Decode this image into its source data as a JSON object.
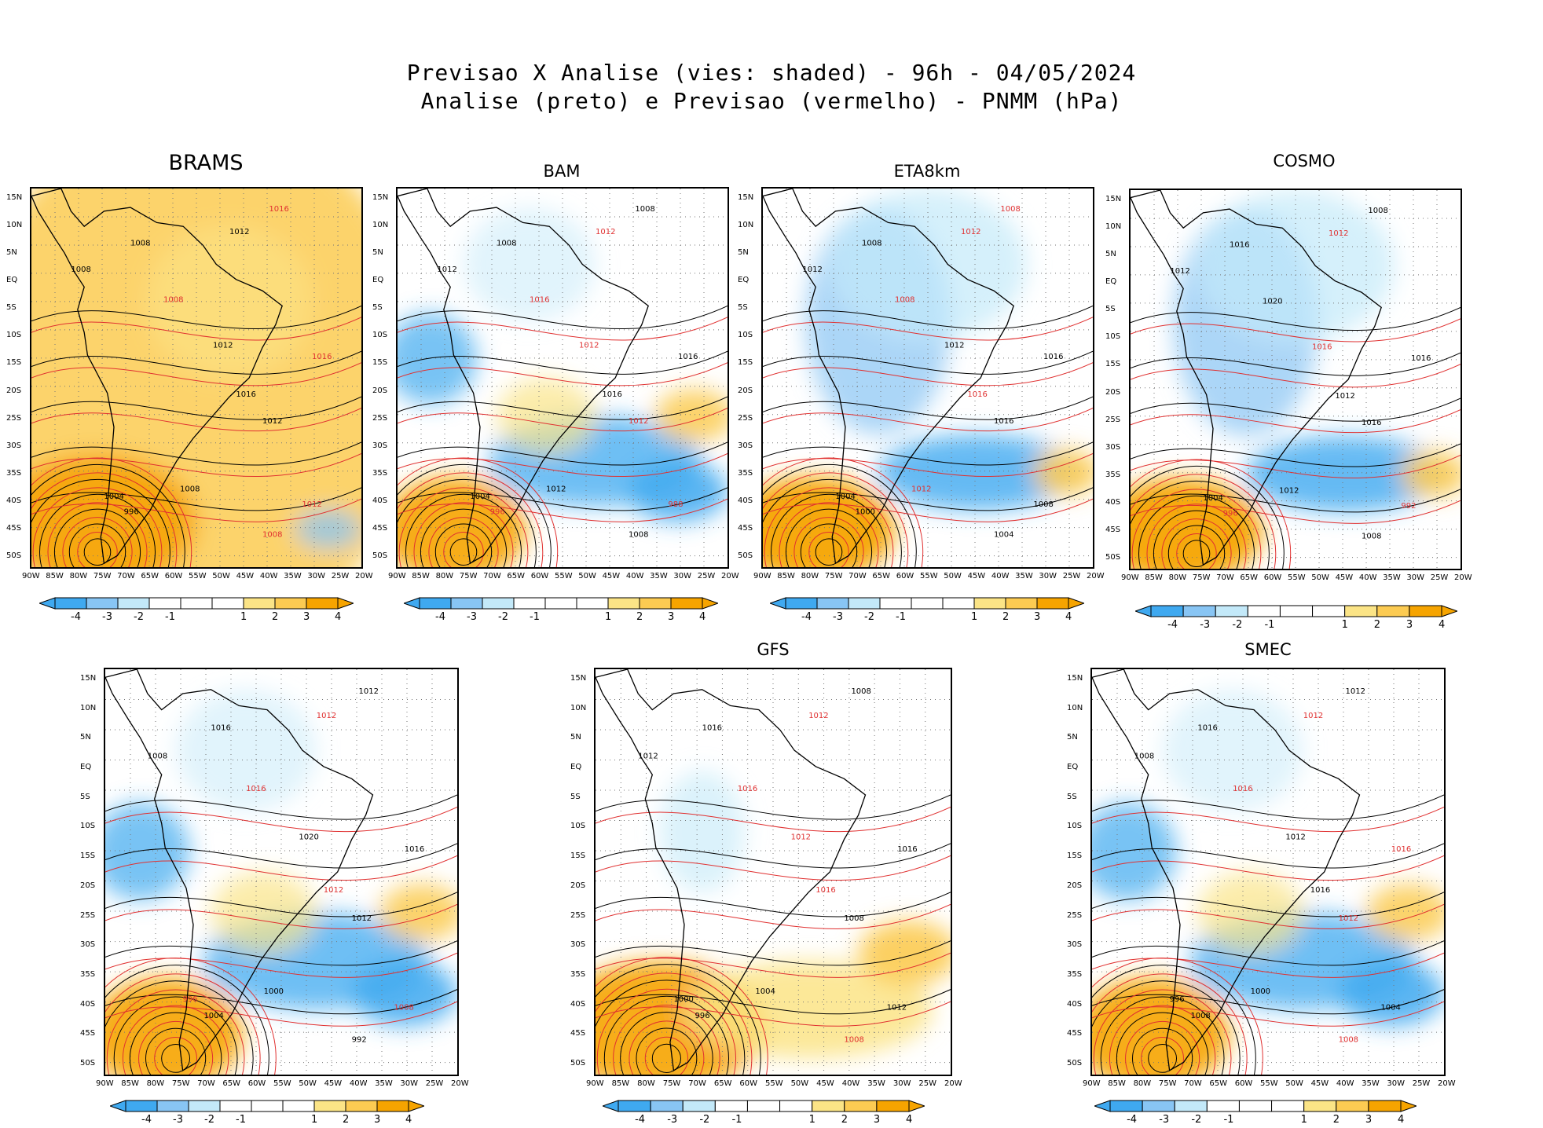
{
  "header": {
    "line1": "Previsao X Analise (vies: shaded) - 96h - 04/05/2024",
    "line2": "Analise (preto) e Previsao (vermelho) - PNMM (hPa)"
  },
  "colors": {
    "neg4": "#3fa9f0",
    "neg3": "#88c5f4",
    "neg2": "#c3e9f9",
    "neg1": "#ffffff",
    "pos1": "#ffffff",
    "pos2": "#fbe486",
    "pos3": "#fccb52",
    "pos4": "#f6a400",
    "analysis_contour": "#000000",
    "forecast_contour": "#e03030"
  },
  "chart_data": [
    {
      "type": "heatmap",
      "title": "BRAMS",
      "bias_tendency": "warm",
      "lat_ticks": [
        "15N",
        "10N",
        "5N",
        "EQ",
        "5S",
        "10S",
        "15S",
        "20S",
        "25S",
        "30S",
        "35S",
        "40S",
        "45S",
        "50S"
      ],
      "lon_ticks": [
        "90W",
        "85W",
        "80W",
        "75W",
        "70W",
        "65W",
        "60W",
        "55W",
        "50W",
        "45W",
        "40W",
        "35W",
        "30W",
        "25W",
        "20W"
      ],
      "colorbar": [
        "-4",
        "-3",
        "-2",
        "-1",
        "1",
        "2",
        "3",
        "4"
      ],
      "labels": [
        {
          "t": "1016",
          "c": "red"
        },
        {
          "t": "1012",
          "c": "black"
        },
        {
          "t": "1008",
          "c": "black"
        },
        {
          "t": "1008",
          "c": "black"
        },
        {
          "t": "1008",
          "c": "red"
        },
        {
          "t": "1012",
          "c": "black"
        },
        {
          "t": "1016",
          "c": "red"
        },
        {
          "t": "1016",
          "c": "black"
        },
        {
          "t": "1012",
          "c": "black"
        },
        {
          "t": "1008",
          "c": "black"
        },
        {
          "t": "1004",
          "c": "black"
        },
        {
          "t": "996",
          "c": "black"
        },
        {
          "t": "1012",
          "c": "red"
        },
        {
          "t": "1008",
          "c": "red"
        }
      ]
    },
    {
      "type": "heatmap",
      "title": "BAM",
      "bias_tendency": "mixed",
      "lat_ticks": [
        "15N",
        "10N",
        "5N",
        "EQ",
        "5S",
        "10S",
        "15S",
        "20S",
        "25S",
        "30S",
        "35S",
        "40S",
        "45S",
        "50S"
      ],
      "lon_ticks": [
        "90W",
        "85W",
        "80W",
        "75W",
        "70W",
        "65W",
        "60W",
        "55W",
        "50W",
        "45W",
        "40W",
        "35W",
        "30W",
        "25W",
        "20W"
      ],
      "colorbar": [
        "-4",
        "-3",
        "-2",
        "-1",
        "1",
        "2",
        "3",
        "4"
      ],
      "labels": [
        {
          "t": "1008",
          "c": "black"
        },
        {
          "t": "1012",
          "c": "red"
        },
        {
          "t": "1012",
          "c": "black"
        },
        {
          "t": "1008",
          "c": "black"
        },
        {
          "t": "1016",
          "c": "red"
        },
        {
          "t": "1012",
          "c": "red"
        },
        {
          "t": "1016",
          "c": "black"
        },
        {
          "t": "1016",
          "c": "black"
        },
        {
          "t": "1012",
          "c": "red"
        },
        {
          "t": "1012",
          "c": "black"
        },
        {
          "t": "1004",
          "c": "black"
        },
        {
          "t": "996",
          "c": "red"
        },
        {
          "t": "988",
          "c": "red"
        },
        {
          "t": "1008",
          "c": "black"
        }
      ]
    },
    {
      "type": "heatmap",
      "title": "ETA8km",
      "bias_tendency": "cold",
      "lat_ticks": [
        "15N",
        "10N",
        "5N",
        "EQ",
        "5S",
        "10S",
        "15S",
        "20S",
        "25S",
        "30S",
        "35S",
        "40S",
        "45S",
        "50S"
      ],
      "lon_ticks": [
        "90W",
        "85W",
        "80W",
        "75W",
        "70W",
        "65W",
        "60W",
        "55W",
        "50W",
        "45W",
        "40W",
        "35W",
        "30W",
        "25W",
        "20W"
      ],
      "colorbar": [
        "-4",
        "-3",
        "-2",
        "-1",
        "1",
        "2",
        "3",
        "4"
      ],
      "labels": [
        {
          "t": "1008",
          "c": "red"
        },
        {
          "t": "1012",
          "c": "red"
        },
        {
          "t": "1012",
          "c": "black"
        },
        {
          "t": "1008",
          "c": "black"
        },
        {
          "t": "1008",
          "c": "red"
        },
        {
          "t": "1012",
          "c": "black"
        },
        {
          "t": "1016",
          "c": "black"
        },
        {
          "t": "1016",
          "c": "red"
        },
        {
          "t": "1016",
          "c": "black"
        },
        {
          "t": "1012",
          "c": "red"
        },
        {
          "t": "1004",
          "c": "black"
        },
        {
          "t": "1000",
          "c": "black"
        },
        {
          "t": "1008",
          "c": "black"
        },
        {
          "t": "1004",
          "c": "black"
        }
      ]
    },
    {
      "type": "heatmap",
      "title": "COSMO",
      "bias_tendency": "cold",
      "lat_ticks": [
        "15N",
        "10N",
        "5N",
        "EQ",
        "5S",
        "10S",
        "15S",
        "20S",
        "25S",
        "30S",
        "35S",
        "40S",
        "45S",
        "50S"
      ],
      "lon_ticks": [
        "90W",
        "85W",
        "80W",
        "75W",
        "70W",
        "65W",
        "60W",
        "55W",
        "50W",
        "45W",
        "40W",
        "35W",
        "30W",
        "25W",
        "20W"
      ],
      "colorbar": [
        "-4",
        "-3",
        "-2",
        "-1",
        "1",
        "2",
        "3",
        "4"
      ],
      "labels": [
        {
          "t": "1008",
          "c": "black"
        },
        {
          "t": "1012",
          "c": "red"
        },
        {
          "t": "1012",
          "c": "black"
        },
        {
          "t": "1016",
          "c": "black"
        },
        {
          "t": "1020",
          "c": "black"
        },
        {
          "t": "1016",
          "c": "red"
        },
        {
          "t": "1016",
          "c": "black"
        },
        {
          "t": "1012",
          "c": "black"
        },
        {
          "t": "1016",
          "c": "black"
        },
        {
          "t": "1012",
          "c": "black"
        },
        {
          "t": "1004",
          "c": "black"
        },
        {
          "t": "996",
          "c": "red"
        },
        {
          "t": "992",
          "c": "red"
        },
        {
          "t": "1008",
          "c": "black"
        }
      ]
    },
    {
      "type": "heatmap",
      "title": "",
      "bias_tendency": "mixed",
      "lat_ticks": [
        "15N",
        "10N",
        "5N",
        "EQ",
        "5S",
        "10S",
        "15S",
        "20S",
        "25S",
        "30S",
        "35S",
        "40S",
        "45S",
        "50S"
      ],
      "lon_ticks": [
        "90W",
        "85W",
        "80W",
        "75W",
        "70W",
        "65W",
        "60W",
        "55W",
        "50W",
        "45W",
        "40W",
        "35W",
        "30W",
        "25W",
        "20W"
      ],
      "colorbar": [
        "-4",
        "-3",
        "-2",
        "-1",
        "1",
        "2",
        "3",
        "4"
      ],
      "labels": [
        {
          "t": "1012",
          "c": "black"
        },
        {
          "t": "1012",
          "c": "red"
        },
        {
          "t": "1008",
          "c": "black"
        },
        {
          "t": "1016",
          "c": "black"
        },
        {
          "t": "1016",
          "c": "red"
        },
        {
          "t": "1020",
          "c": "black"
        },
        {
          "t": "1016",
          "c": "black"
        },
        {
          "t": "1012",
          "c": "red"
        },
        {
          "t": "1012",
          "c": "black"
        },
        {
          "t": "1000",
          "c": "black"
        },
        {
          "t": "996",
          "c": "red"
        },
        {
          "t": "1004",
          "c": "black"
        },
        {
          "t": "1008",
          "c": "red"
        },
        {
          "t": "992",
          "c": "black"
        }
      ]
    },
    {
      "type": "heatmap",
      "title": "GFS",
      "bias_tendency": "warm-south",
      "lat_ticks": [
        "15N",
        "10N",
        "5N",
        "EQ",
        "5S",
        "10S",
        "15S",
        "20S",
        "25S",
        "30S",
        "35S",
        "40S",
        "45S",
        "50S"
      ],
      "lon_ticks": [
        "90W",
        "85W",
        "80W",
        "75W",
        "70W",
        "65W",
        "60W",
        "55W",
        "50W",
        "45W",
        "40W",
        "35W",
        "30W",
        "25W",
        "20W"
      ],
      "colorbar": [
        "-4",
        "-3",
        "-2",
        "-1",
        "1",
        "2",
        "3",
        "4"
      ],
      "labels": [
        {
          "t": "1008",
          "c": "black"
        },
        {
          "t": "1012",
          "c": "red"
        },
        {
          "t": "1012",
          "c": "black"
        },
        {
          "t": "1016",
          "c": "black"
        },
        {
          "t": "1016",
          "c": "red"
        },
        {
          "t": "1012",
          "c": "red"
        },
        {
          "t": "1016",
          "c": "black"
        },
        {
          "t": "1016",
          "c": "red"
        },
        {
          "t": "1008",
          "c": "black"
        },
        {
          "t": "1004",
          "c": "black"
        },
        {
          "t": "1000",
          "c": "black"
        },
        {
          "t": "996",
          "c": "black"
        },
        {
          "t": "1012",
          "c": "black"
        },
        {
          "t": "1008",
          "c": "red"
        }
      ]
    },
    {
      "type": "heatmap",
      "title": "SMEC",
      "bias_tendency": "mixed",
      "lat_ticks": [
        "15N",
        "10N",
        "5N",
        "EQ",
        "5S",
        "10S",
        "15S",
        "20S",
        "25S",
        "30S",
        "35S",
        "40S",
        "45S",
        "50S"
      ],
      "lon_ticks": [
        "90W",
        "85W",
        "80W",
        "75W",
        "70W",
        "65W",
        "60W",
        "55W",
        "50W",
        "45W",
        "40W",
        "35W",
        "30W",
        "25W",
        "20W"
      ],
      "colorbar": [
        "-4",
        "-3",
        "-2",
        "-1",
        "1",
        "2",
        "3",
        "4"
      ],
      "labels": [
        {
          "t": "1012",
          "c": "black"
        },
        {
          "t": "1012",
          "c": "red"
        },
        {
          "t": "1008",
          "c": "black"
        },
        {
          "t": "1016",
          "c": "black"
        },
        {
          "t": "1016",
          "c": "red"
        },
        {
          "t": "1012",
          "c": "black"
        },
        {
          "t": "1016",
          "c": "red"
        },
        {
          "t": "1016",
          "c": "black"
        },
        {
          "t": "1012",
          "c": "red"
        },
        {
          "t": "1000",
          "c": "black"
        },
        {
          "t": "996",
          "c": "black"
        },
        {
          "t": "1008",
          "c": "black"
        },
        {
          "t": "1004",
          "c": "black"
        },
        {
          "t": "1008",
          "c": "red"
        }
      ]
    }
  ]
}
